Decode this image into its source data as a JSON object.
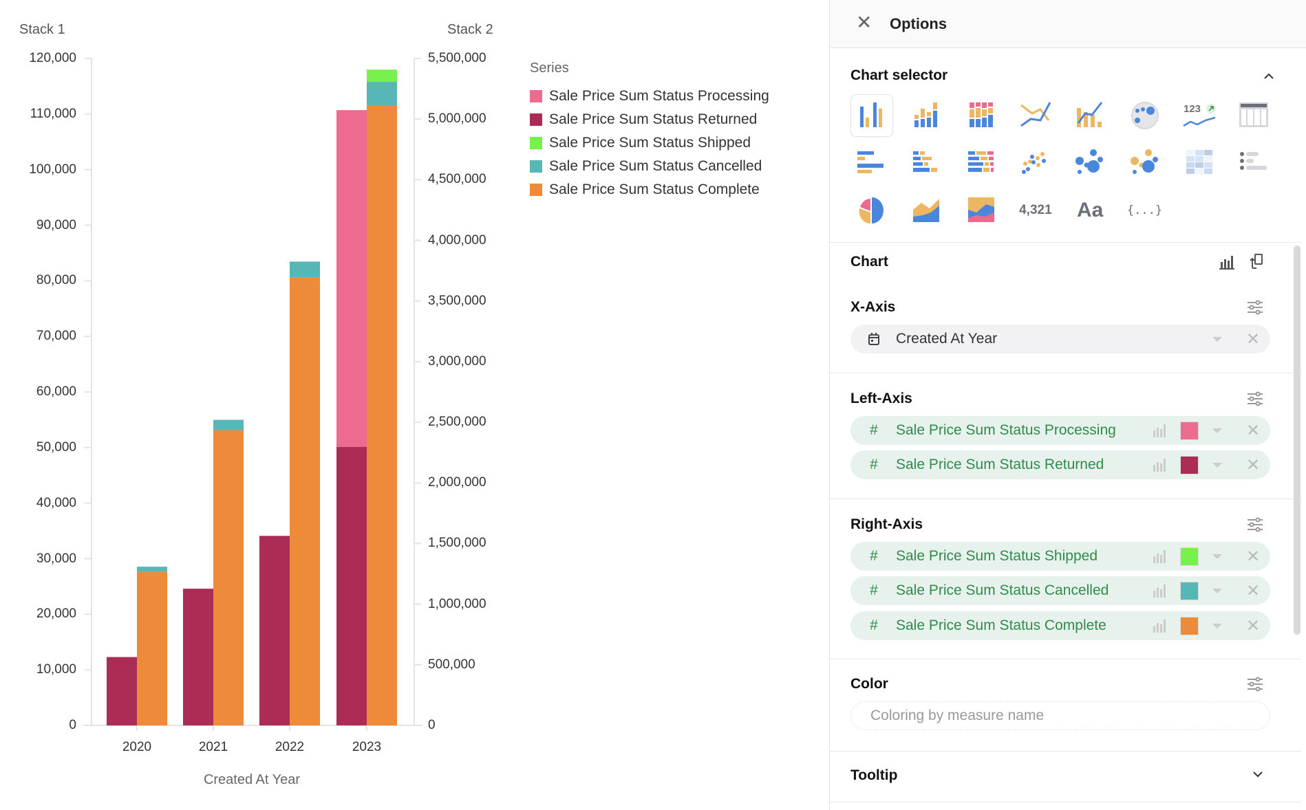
{
  "chart": {
    "left_axis_title": "Stack 1",
    "right_axis_title": "Stack 2",
    "x_axis_title": "Created At Year",
    "legend_title": "Series"
  },
  "chart_data": {
    "type": "bar",
    "stacked": true,
    "categories": [
      "2020",
      "2021",
      "2022",
      "2023"
    ],
    "xlabel": "Created At Year",
    "left_axis": {
      "title": "Stack 1",
      "ylim": [
        0,
        120000
      ],
      "ticks": [
        "0",
        "10,000",
        "20,000",
        "30,000",
        "40,000",
        "50,000",
        "60,000",
        "70,000",
        "80,000",
        "90,000",
        "100,000",
        "110,000",
        "120,000"
      ]
    },
    "right_axis": {
      "title": "Stack 2",
      "ylim": [
        0,
        5500000
      ],
      "ticks": [
        "0",
        "500,000",
        "1,000,000",
        "1,500,000",
        "2,000,000",
        "2,500,000",
        "3,000,000",
        "3,500,000",
        "4,000,000",
        "4,500,000",
        "5,000,000",
        "5,500,000"
      ]
    },
    "legend_position": "right",
    "grid": false,
    "series": [
      {
        "name": "Sale Price Sum Status Processing",
        "axis": "left",
        "color": "#ec6b8f",
        "values": [
          0,
          0,
          0,
          60600
        ]
      },
      {
        "name": "Sale Price Sum Status Returned",
        "axis": "left",
        "color": "#ab2d55",
        "values": [
          12300,
          24600,
          34100,
          50100
        ]
      },
      {
        "name": "Sale Price Sum Status Shipped",
        "axis": "right",
        "color": "#77f24c",
        "values": [
          0,
          0,
          0,
          101000
        ]
      },
      {
        "name": "Sale Price Sum Status Cancelled",
        "axis": "right",
        "color": "#57b6b6",
        "values": [
          41000,
          85000,
          133000,
          198000
        ]
      },
      {
        "name": "Sale Price Sum Status Complete",
        "axis": "right",
        "color": "#ee8b3a",
        "values": [
          1268000,
          2435000,
          3692000,
          5109000
        ]
      }
    ]
  },
  "panel": {
    "title": "Options",
    "chart_selector": {
      "title": "Chart selector",
      "icons": [
        "grouped-bar-chart-icon",
        "stacked-bar-chart-icon",
        "percent-stacked-bar-icon",
        "line-chart-icon",
        "combo-chart-icon",
        "geo-map-icon",
        "kpi-trend-icon",
        "table-icon",
        "horizontal-bar-icon",
        "horizontal-stacked-bar-icon",
        "horizontal-percent-bar-icon",
        "scatter-icon",
        "bubble-icon",
        "bubble-2-icon",
        "heatmap-icon",
        "list-icon",
        "pie-chart-icon",
        "area-chart-icon",
        "stacked-area-icon",
        "number-icon",
        "text-icon",
        "json-icon"
      ],
      "number_label": "4,321",
      "text_label": "Aa",
      "json_label": "{...}",
      "kpi_label": "123"
    },
    "chart_section": {
      "title": "Chart"
    },
    "x_axis": {
      "title": "X-Axis",
      "field": "Created At Year"
    },
    "left_axis": {
      "title": "Left-Axis",
      "fields": [
        {
          "label": "Sale Price Sum Status Processing",
          "color": "#ec6b8f"
        },
        {
          "label": "Sale Price Sum Status Returned",
          "color": "#ab2d55"
        }
      ]
    },
    "right_axis": {
      "title": "Right-Axis",
      "fields": [
        {
          "label": "Sale Price Sum Status Shipped",
          "color": "#77f24c"
        },
        {
          "label": "Sale Price Sum Status Cancelled",
          "color": "#57b6b6"
        },
        {
          "label": "Sale Price Sum Status Complete",
          "color": "#ee8b3a"
        }
      ]
    },
    "color": {
      "title": "Color",
      "placeholder": "Coloring by measure name"
    },
    "tooltip": {
      "title": "Tooltip"
    },
    "hash": "#"
  }
}
